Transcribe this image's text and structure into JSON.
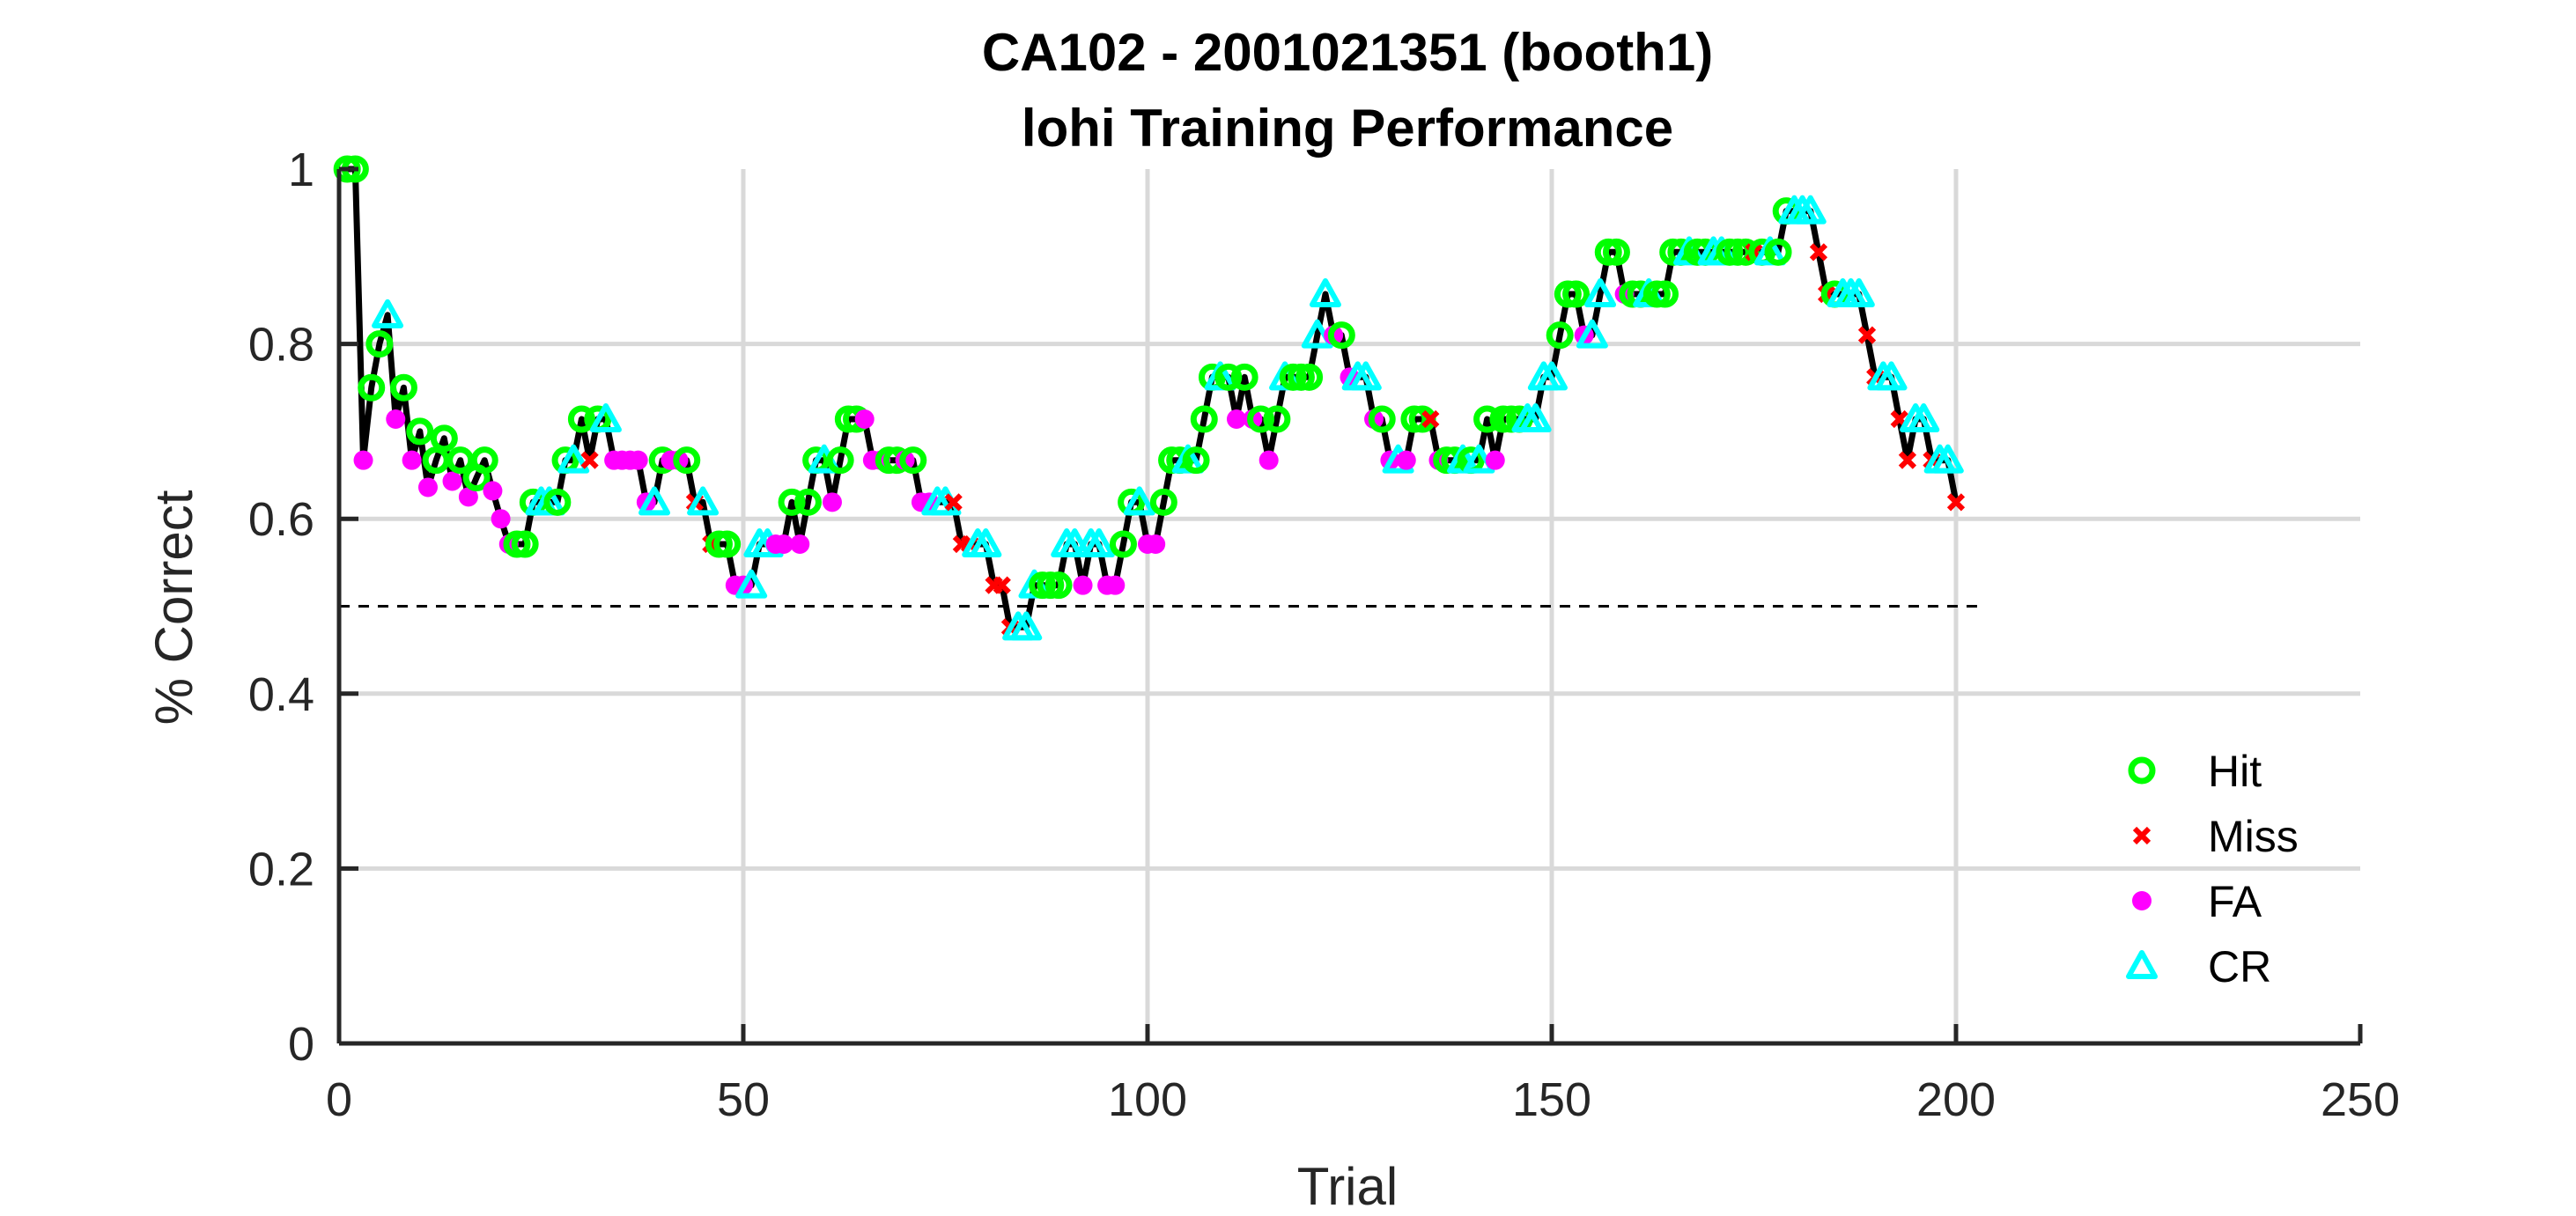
{
  "chart_data": {
    "type": "scatter",
    "title": "CA102 - 2001021351 (booth1)",
    "subtitle": "lohi Training Performance",
    "xlabel": "Trial",
    "ylabel": "% Correct",
    "xlim": [
      0,
      250
    ],
    "ylim": [
      0,
      1
    ],
    "xticks": [
      0,
      50,
      100,
      150,
      200,
      250
    ],
    "yticks": [
      0,
      0.2,
      0.4,
      0.6,
      0.8,
      1
    ],
    "xtick_labels": [
      "0",
      "50",
      "100",
      "150",
      "200",
      "250"
    ],
    "ytick_labels": [
      "0",
      "0.2",
      "0.4",
      "0.6",
      "0.8",
      "1"
    ],
    "grid": true,
    "legend_position": "lower-right",
    "chance_line": {
      "y": 0.5,
      "x_range": [
        0,
        203
      ],
      "style": "dashed"
    },
    "line_color": "#000000",
    "legend": [
      {
        "name": "Hit",
        "outcome": "H",
        "marker": "circle-open",
        "color": "#00ff00"
      },
      {
        "name": "Miss",
        "outcome": "M",
        "marker": "x",
        "color": "#ff0000"
      },
      {
        "name": "FA",
        "outcome": "F",
        "marker": "dot",
        "color": "#ff00ff"
      },
      {
        "name": "CR",
        "outcome": "C",
        "marker": "triangle-open",
        "color": "#00ffff"
      }
    ],
    "trials": [
      [
        1,
        1.0,
        "H"
      ],
      [
        2,
        1.0,
        "H"
      ],
      [
        3,
        0.667,
        "F"
      ],
      [
        4,
        0.75,
        "H"
      ],
      [
        5,
        0.8,
        "H"
      ],
      [
        6,
        0.833,
        "C"
      ],
      [
        7,
        0.714,
        "F"
      ],
      [
        8,
        0.75,
        "H"
      ],
      [
        9,
        0.667,
        "F"
      ],
      [
        10,
        0.7,
        "H"
      ],
      [
        11,
        0.636,
        "F"
      ],
      [
        12,
        0.667,
        "H"
      ],
      [
        13,
        0.692,
        "H"
      ],
      [
        14,
        0.643,
        "F"
      ],
      [
        15,
        0.667,
        "H"
      ],
      [
        16,
        0.625,
        "F"
      ],
      [
        17,
        0.647,
        "H"
      ],
      [
        18,
        0.667,
        "H"
      ],
      [
        19,
        0.632,
        "F"
      ],
      [
        20,
        0.6,
        "F"
      ],
      [
        21,
        0.571,
        "F"
      ],
      [
        22,
        0.571,
        "H"
      ],
      [
        23,
        0.571,
        "H"
      ],
      [
        24,
        0.619,
        "H"
      ],
      [
        25,
        0.619,
        "C"
      ],
      [
        26,
        0.619,
        "C"
      ],
      [
        27,
        0.619,
        "H"
      ],
      [
        28,
        0.667,
        "H"
      ],
      [
        29,
        0.667,
        "C"
      ],
      [
        30,
        0.714,
        "H"
      ],
      [
        31,
        0.667,
        "M"
      ],
      [
        32,
        0.714,
        "H"
      ],
      [
        33,
        0.714,
        "C"
      ],
      [
        34,
        0.667,
        "F"
      ],
      [
        35,
        0.667,
        "F"
      ],
      [
        36,
        0.667,
        "F"
      ],
      [
        37,
        0.667,
        "F"
      ],
      [
        38,
        0.619,
        "F"
      ],
      [
        39,
        0.619,
        "C"
      ],
      [
        40,
        0.667,
        "H"
      ],
      [
        41,
        0.667,
        "F"
      ],
      [
        42,
        0.667,
        "F"
      ],
      [
        43,
        0.667,
        "H"
      ],
      [
        44,
        0.619,
        "M"
      ],
      [
        45,
        0.619,
        "C"
      ],
      [
        46,
        0.571,
        "M"
      ],
      [
        47,
        0.571,
        "H"
      ],
      [
        48,
        0.571,
        "H"
      ],
      [
        49,
        0.524,
        "F"
      ],
      [
        50,
        0.524,
        "F"
      ],
      [
        51,
        0.524,
        "C"
      ],
      [
        52,
        0.571,
        "C"
      ],
      [
        53,
        0.571,
        "C"
      ],
      [
        54,
        0.571,
        "F"
      ],
      [
        55,
        0.571,
        "F"
      ],
      [
        56,
        0.619,
        "H"
      ],
      [
        57,
        0.571,
        "F"
      ],
      [
        58,
        0.619,
        "H"
      ],
      [
        59,
        0.667,
        "H"
      ],
      [
        60,
        0.667,
        "C"
      ],
      [
        61,
        0.619,
        "F"
      ],
      [
        62,
        0.667,
        "H"
      ],
      [
        63,
        0.714,
        "H"
      ],
      [
        64,
        0.714,
        "H"
      ],
      [
        65,
        0.714,
        "F"
      ],
      [
        66,
        0.667,
        "F"
      ],
      [
        67,
        0.667,
        "F"
      ],
      [
        68,
        0.667,
        "H"
      ],
      [
        69,
        0.667,
        "H"
      ],
      [
        70,
        0.667,
        "F"
      ],
      [
        71,
        0.667,
        "H"
      ],
      [
        72,
        0.619,
        "F"
      ],
      [
        73,
        0.619,
        "F"
      ],
      [
        74,
        0.619,
        "C"
      ],
      [
        75,
        0.619,
        "C"
      ],
      [
        76,
        0.619,
        "M"
      ],
      [
        77,
        0.571,
        "M"
      ],
      [
        78,
        0.571,
        "M"
      ],
      [
        79,
        0.571,
        "C"
      ],
      [
        80,
        0.571,
        "C"
      ],
      [
        81,
        0.524,
        "M"
      ],
      [
        82,
        0.524,
        "M"
      ],
      [
        83,
        0.476,
        "M"
      ],
      [
        84,
        0.476,
        "C"
      ],
      [
        85,
        0.476,
        "C"
      ],
      [
        86,
        0.524,
        "C"
      ],
      [
        87,
        0.524,
        "H"
      ],
      [
        88,
        0.524,
        "H"
      ],
      [
        89,
        0.524,
        "H"
      ],
      [
        90,
        0.571,
        "C"
      ],
      [
        91,
        0.571,
        "C"
      ],
      [
        92,
        0.524,
        "F"
      ],
      [
        93,
        0.571,
        "C"
      ],
      [
        94,
        0.571,
        "C"
      ],
      [
        95,
        0.524,
        "F"
      ],
      [
        96,
        0.524,
        "F"
      ],
      [
        97,
        0.571,
        "H"
      ],
      [
        98,
        0.619,
        "H"
      ],
      [
        99,
        0.619,
        "C"
      ],
      [
        100,
        0.571,
        "F"
      ],
      [
        101,
        0.571,
        "F"
      ],
      [
        102,
        0.619,
        "H"
      ],
      [
        103,
        0.667,
        "H"
      ],
      [
        104,
        0.667,
        "H"
      ],
      [
        105,
        0.667,
        "C"
      ],
      [
        106,
        0.667,
        "H"
      ],
      [
        107,
        0.714,
        "H"
      ],
      [
        108,
        0.762,
        "H"
      ],
      [
        109,
        0.762,
        "C"
      ],
      [
        110,
        0.762,
        "H"
      ],
      [
        111,
        0.714,
        "F"
      ],
      [
        112,
        0.762,
        "H"
      ],
      [
        113,
        0.714,
        "F"
      ],
      [
        114,
        0.714,
        "H"
      ],
      [
        115,
        0.667,
        "F"
      ],
      [
        116,
        0.714,
        "H"
      ],
      [
        117,
        0.762,
        "C"
      ],
      [
        118,
        0.762,
        "H"
      ],
      [
        119,
        0.762,
        "H"
      ],
      [
        120,
        0.762,
        "H"
      ],
      [
        121,
        0.81,
        "C"
      ],
      [
        122,
        0.857,
        "C"
      ],
      [
        123,
        0.81,
        "F"
      ],
      [
        124,
        0.81,
        "H"
      ],
      [
        125,
        0.762,
        "F"
      ],
      [
        126,
        0.762,
        "C"
      ],
      [
        127,
        0.762,
        "C"
      ],
      [
        128,
        0.714,
        "F"
      ],
      [
        129,
        0.714,
        "H"
      ],
      [
        130,
        0.667,
        "F"
      ],
      [
        131,
        0.667,
        "C"
      ],
      [
        132,
        0.667,
        "F"
      ],
      [
        133,
        0.714,
        "H"
      ],
      [
        134,
        0.714,
        "H"
      ],
      [
        135,
        0.714,
        "M"
      ],
      [
        136,
        0.667,
        "F"
      ],
      [
        137,
        0.667,
        "H"
      ],
      [
        138,
        0.667,
        "H"
      ],
      [
        139,
        0.667,
        "C"
      ],
      [
        140,
        0.667,
        "H"
      ],
      [
        141,
        0.667,
        "C"
      ],
      [
        142,
        0.714,
        "H"
      ],
      [
        143,
        0.667,
        "F"
      ],
      [
        144,
        0.714,
        "H"
      ],
      [
        145,
        0.714,
        "H"
      ],
      [
        146,
        0.714,
        "H"
      ],
      [
        147,
        0.714,
        "C"
      ],
      [
        148,
        0.714,
        "C"
      ],
      [
        149,
        0.762,
        "C"
      ],
      [
        150,
        0.762,
        "C"
      ],
      [
        151,
        0.81,
        "H"
      ],
      [
        152,
        0.857,
        "H"
      ],
      [
        153,
        0.857,
        "H"
      ],
      [
        154,
        0.81,
        "F"
      ],
      [
        155,
        0.81,
        "C"
      ],
      [
        156,
        0.857,
        "C"
      ],
      [
        157,
        0.905,
        "H"
      ],
      [
        158,
        0.905,
        "H"
      ],
      [
        159,
        0.857,
        "F"
      ],
      [
        160,
        0.857,
        "H"
      ],
      [
        161,
        0.857,
        "H"
      ],
      [
        162,
        0.857,
        "C"
      ],
      [
        163,
        0.857,
        "H"
      ],
      [
        164,
        0.857,
        "H"
      ],
      [
        165,
        0.905,
        "H"
      ],
      [
        166,
        0.905,
        "H"
      ],
      [
        167,
        0.905,
        "C"
      ],
      [
        168,
        0.905,
        "H"
      ],
      [
        169,
        0.905,
        "H"
      ],
      [
        170,
        0.905,
        "C"
      ],
      [
        171,
        0.905,
        "C"
      ],
      [
        172,
        0.905,
        "H"
      ],
      [
        173,
        0.905,
        "H"
      ],
      [
        174,
        0.905,
        "H"
      ],
      [
        175,
        0.905,
        "M"
      ],
      [
        176,
        0.905,
        "H"
      ],
      [
        177,
        0.905,
        "C"
      ],
      [
        178,
        0.905,
        "H"
      ],
      [
        179,
        0.952,
        "H"
      ],
      [
        180,
        0.952,
        "C"
      ],
      [
        181,
        0.952,
        "C"
      ],
      [
        182,
        0.952,
        "C"
      ],
      [
        183,
        0.905,
        "M"
      ],
      [
        184,
        0.857,
        "M"
      ],
      [
        185,
        0.857,
        "H"
      ],
      [
        186,
        0.857,
        "C"
      ],
      [
        187,
        0.857,
        "C"
      ],
      [
        188,
        0.857,
        "C"
      ],
      [
        189,
        0.81,
        "M"
      ],
      [
        190,
        0.762,
        "M"
      ],
      [
        191,
        0.762,
        "C"
      ],
      [
        192,
        0.762,
        "C"
      ],
      [
        193,
        0.714,
        "M"
      ],
      [
        194,
        0.667,
        "M"
      ],
      [
        195,
        0.714,
        "C"
      ],
      [
        196,
        0.714,
        "C"
      ],
      [
        197,
        0.667,
        "M"
      ],
      [
        198,
        0.667,
        "C"
      ],
      [
        199,
        0.667,
        "C"
      ],
      [
        200,
        0.619,
        "M"
      ]
    ]
  }
}
